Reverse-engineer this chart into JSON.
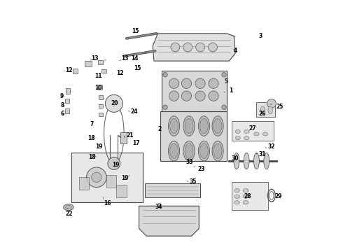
{
  "title": "",
  "bg_color": "#ffffff",
  "fig_width": 4.9,
  "fig_height": 3.6,
  "dpi": 100,
  "label_fontsize": 5.5,
  "line_color": "#333333",
  "label_color": "#000000"
}
